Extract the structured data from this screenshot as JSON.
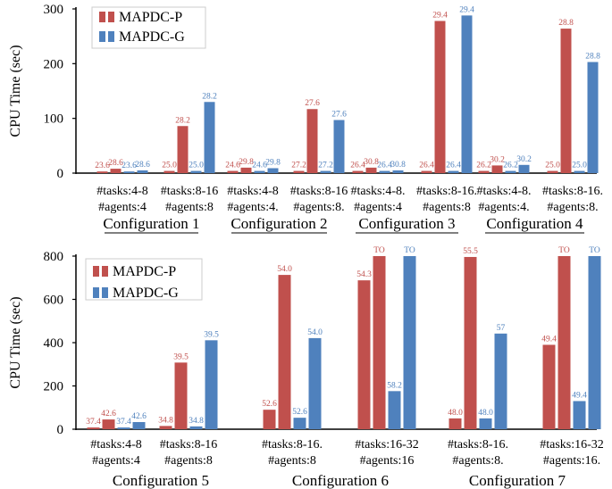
{
  "colors": {
    "p": "#c0504d",
    "g": "#4f81bd",
    "axis": "#000000"
  },
  "chart_data": [
    {
      "type": "bar",
      "ylabel": "CPU Time (sec)",
      "ylim": [
        0,
        300
      ],
      "yticks": [
        0,
        100,
        200,
        300
      ],
      "legend": {
        "position": "top-left",
        "entries": [
          "MAPDC-P",
          "MAPDC-G"
        ]
      },
      "configurations": [
        {
          "label": "Configuration 1",
          "groups": [
            {
              "xlabel": [
                "#tasks:4-8",
                "#agents:4"
              ],
              "bars": [
                {
                  "series": "MAPDC-P",
                  "value": 3,
                  "label": "23.6"
                },
                {
                  "series": "MAPDC-P",
                  "value": 8,
                  "label": "28.6"
                },
                {
                  "series": "MAPDC-G",
                  "value": 3,
                  "label": "23.6"
                },
                {
                  "series": "MAPDC-G",
                  "value": 5,
                  "label": "28.6"
                }
              ]
            },
            {
              "xlabel": [
                "#tasks:8-16",
                "#agents:8"
              ],
              "bars": [
                {
                  "series": "MAPDC-P",
                  "value": 4,
                  "label": "25.0"
                },
                {
                  "series": "MAPDC-P",
                  "value": 86,
                  "label": "28.2"
                },
                {
                  "series": "MAPDC-G",
                  "value": 4,
                  "label": "25.0"
                },
                {
                  "series": "MAPDC-G",
                  "value": 130,
                  "label": "28.2"
                }
              ]
            }
          ]
        },
        {
          "label": "Configuration 2",
          "groups": [
            {
              "xlabel": [
                "#tasks:4-8",
                "#agents:4."
              ],
              "bars": [
                {
                  "series": "MAPDC-P",
                  "value": 4,
                  "label": "24.6"
                },
                {
                  "series": "MAPDC-P",
                  "value": 10,
                  "label": "29.8"
                },
                {
                  "series": "MAPDC-G",
                  "value": 4,
                  "label": "24.6"
                },
                {
                  "series": "MAPDC-G",
                  "value": 9,
                  "label": "29.8"
                }
              ]
            },
            {
              "xlabel": [
                "#tasks:8-16",
                "#agents:8."
              ],
              "bars": [
                {
                  "series": "MAPDC-P",
                  "value": 4,
                  "label": "27.2"
                },
                {
                  "series": "MAPDC-P",
                  "value": 117,
                  "label": "27.6"
                },
                {
                  "series": "MAPDC-G",
                  "value": 4,
                  "label": "27.2"
                },
                {
                  "series": "MAPDC-G",
                  "value": 97,
                  "label": "27.6"
                }
              ]
            }
          ]
        },
        {
          "label": "Configuration 3",
          "groups": [
            {
              "xlabel": [
                "#tasks:4-8.",
                "#agents:4"
              ],
              "bars": [
                {
                  "series": "MAPDC-P",
                  "value": 4,
                  "label": "26.4"
                },
                {
                  "series": "MAPDC-P",
                  "value": 10,
                  "label": "30.8"
                },
                {
                  "series": "MAPDC-G",
                  "value": 4,
                  "label": "26.4"
                },
                {
                  "series": "MAPDC-G",
                  "value": 5,
                  "label": "30.8"
                }
              ]
            },
            {
              "xlabel": [
                "#tasks:8-16.",
                "#agents:8"
              ],
              "bars": [
                {
                  "series": "MAPDC-P",
                  "value": 4,
                  "label": "26.4"
                },
                {
                  "series": "MAPDC-P",
                  "value": 278,
                  "label": "29.4"
                },
                {
                  "series": "MAPDC-G",
                  "value": 4,
                  "label": "26.4"
                },
                {
                  "series": "MAPDC-G",
                  "value": 288,
                  "label": "29.4"
                }
              ]
            }
          ]
        },
        {
          "label": "Configuration 4",
          "groups": [
            {
              "xlabel": [
                "#tasks:4-8.",
                "#agents:4."
              ],
              "bars": [
                {
                  "series": "MAPDC-P",
                  "value": 4,
                  "label": "26.2"
                },
                {
                  "series": "MAPDC-P",
                  "value": 14,
                  "label": "30.2"
                },
                {
                  "series": "MAPDC-G",
                  "value": 4,
                  "label": "26.2"
                },
                {
                  "series": "MAPDC-G",
                  "value": 15,
                  "label": "30.2"
                }
              ]
            },
            {
              "xlabel": [
                "#tasks:8-16.",
                "#agents:8."
              ],
              "bars": [
                {
                  "series": "MAPDC-P",
                  "value": 4,
                  "label": "25.0"
                },
                {
                  "series": "MAPDC-P",
                  "value": 264,
                  "label": "28.8"
                },
                {
                  "series": "MAPDC-G",
                  "value": 4,
                  "label": "25.0"
                },
                {
                  "series": "MAPDC-G",
                  "value": 203,
                  "label": "28.8"
                }
              ]
            }
          ]
        }
      ]
    },
    {
      "type": "bar",
      "ylabel": "CPU Time (sec)",
      "ylim": [
        0,
        800
      ],
      "yticks": [
        0,
        200,
        400,
        600,
        800
      ],
      "legend": {
        "position": "top-left",
        "entries": [
          "MAPDC-P",
          "MAPDC-G"
        ]
      },
      "configurations": [
        {
          "label": "Configuration 5",
          "groups": [
            {
              "xlabel": [
                "#tasks:4-8",
                "#agents:4"
              ],
              "bars": [
                {
                  "series": "MAPDC-P",
                  "value": 8,
                  "label": "37.4"
                },
                {
                  "series": "MAPDC-P",
                  "value": 45,
                  "label": "42.6"
                },
                {
                  "series": "MAPDC-G",
                  "value": 8,
                  "label": "37.4"
                },
                {
                  "series": "MAPDC-G",
                  "value": 33,
                  "label": "42.6"
                }
              ]
            },
            {
              "xlabel": [
                "#tasks:8-16",
                "#agents:8"
              ],
              "bars": [
                {
                  "series": "MAPDC-P",
                  "value": 15,
                  "label": "34.8"
                },
                {
                  "series": "MAPDC-P",
                  "value": 308,
                  "label": "39.5"
                },
                {
                  "series": "MAPDC-G",
                  "value": 13,
                  "label": "34.8"
                },
                {
                  "series": "MAPDC-G",
                  "value": 411,
                  "label": "39.5"
                }
              ]
            }
          ]
        },
        {
          "label": "Configuration 6",
          "groups": [
            {
              "xlabel": [
                "#tasks:8-16.",
                "#agents:8"
              ],
              "bars": [
                {
                  "series": "MAPDC-P",
                  "value": 90,
                  "label": "52.6"
                },
                {
                  "series": "MAPDC-P",
                  "value": 713,
                  "label": "54.0"
                },
                {
                  "series": "MAPDC-G",
                  "value": 53,
                  "label": "52.6"
                },
                {
                  "series": "MAPDC-G",
                  "value": 421,
                  "label": "54.0"
                }
              ]
            },
            {
              "xlabel": [
                "#tasks:16-32",
                "#agents:16"
              ],
              "bars": [
                {
                  "series": "MAPDC-P",
                  "value": 688,
                  "label": "54.3"
                },
                {
                  "series": "MAPDC-P",
                  "value": 800,
                  "label": "TO"
                },
                {
                  "series": "MAPDC-G",
                  "value": 176,
                  "label": "58.2"
                },
                {
                  "series": "MAPDC-G",
                  "value": 800,
                  "label": "TO"
                }
              ]
            }
          ]
        },
        {
          "label": "Configuration 7",
          "groups": [
            {
              "xlabel": [
                "#tasks:8-16.",
                "#agents:8."
              ],
              "bars": [
                {
                  "series": "MAPDC-P",
                  "value": 50,
                  "label": "48.0"
                },
                {
                  "series": "MAPDC-P",
                  "value": 796,
                  "label": "55.5"
                },
                {
                  "series": "MAPDC-G",
                  "value": 50,
                  "label": "48.0"
                },
                {
                  "series": "MAPDC-G",
                  "value": 442,
                  "label": "57"
                }
              ]
            },
            {
              "xlabel": [
                "#tasks:16-32",
                "#agents:16."
              ],
              "bars": [
                {
                  "series": "MAPDC-P",
                  "value": 390,
                  "label": "49.4"
                },
                {
                  "series": "MAPDC-P",
                  "value": 800,
                  "label": "TO"
                },
                {
                  "series": "MAPDC-G",
                  "value": 130,
                  "label": "49.4"
                },
                {
                  "series": "MAPDC-G",
                  "value": 800,
                  "label": "TO"
                }
              ]
            }
          ]
        }
      ]
    }
  ]
}
